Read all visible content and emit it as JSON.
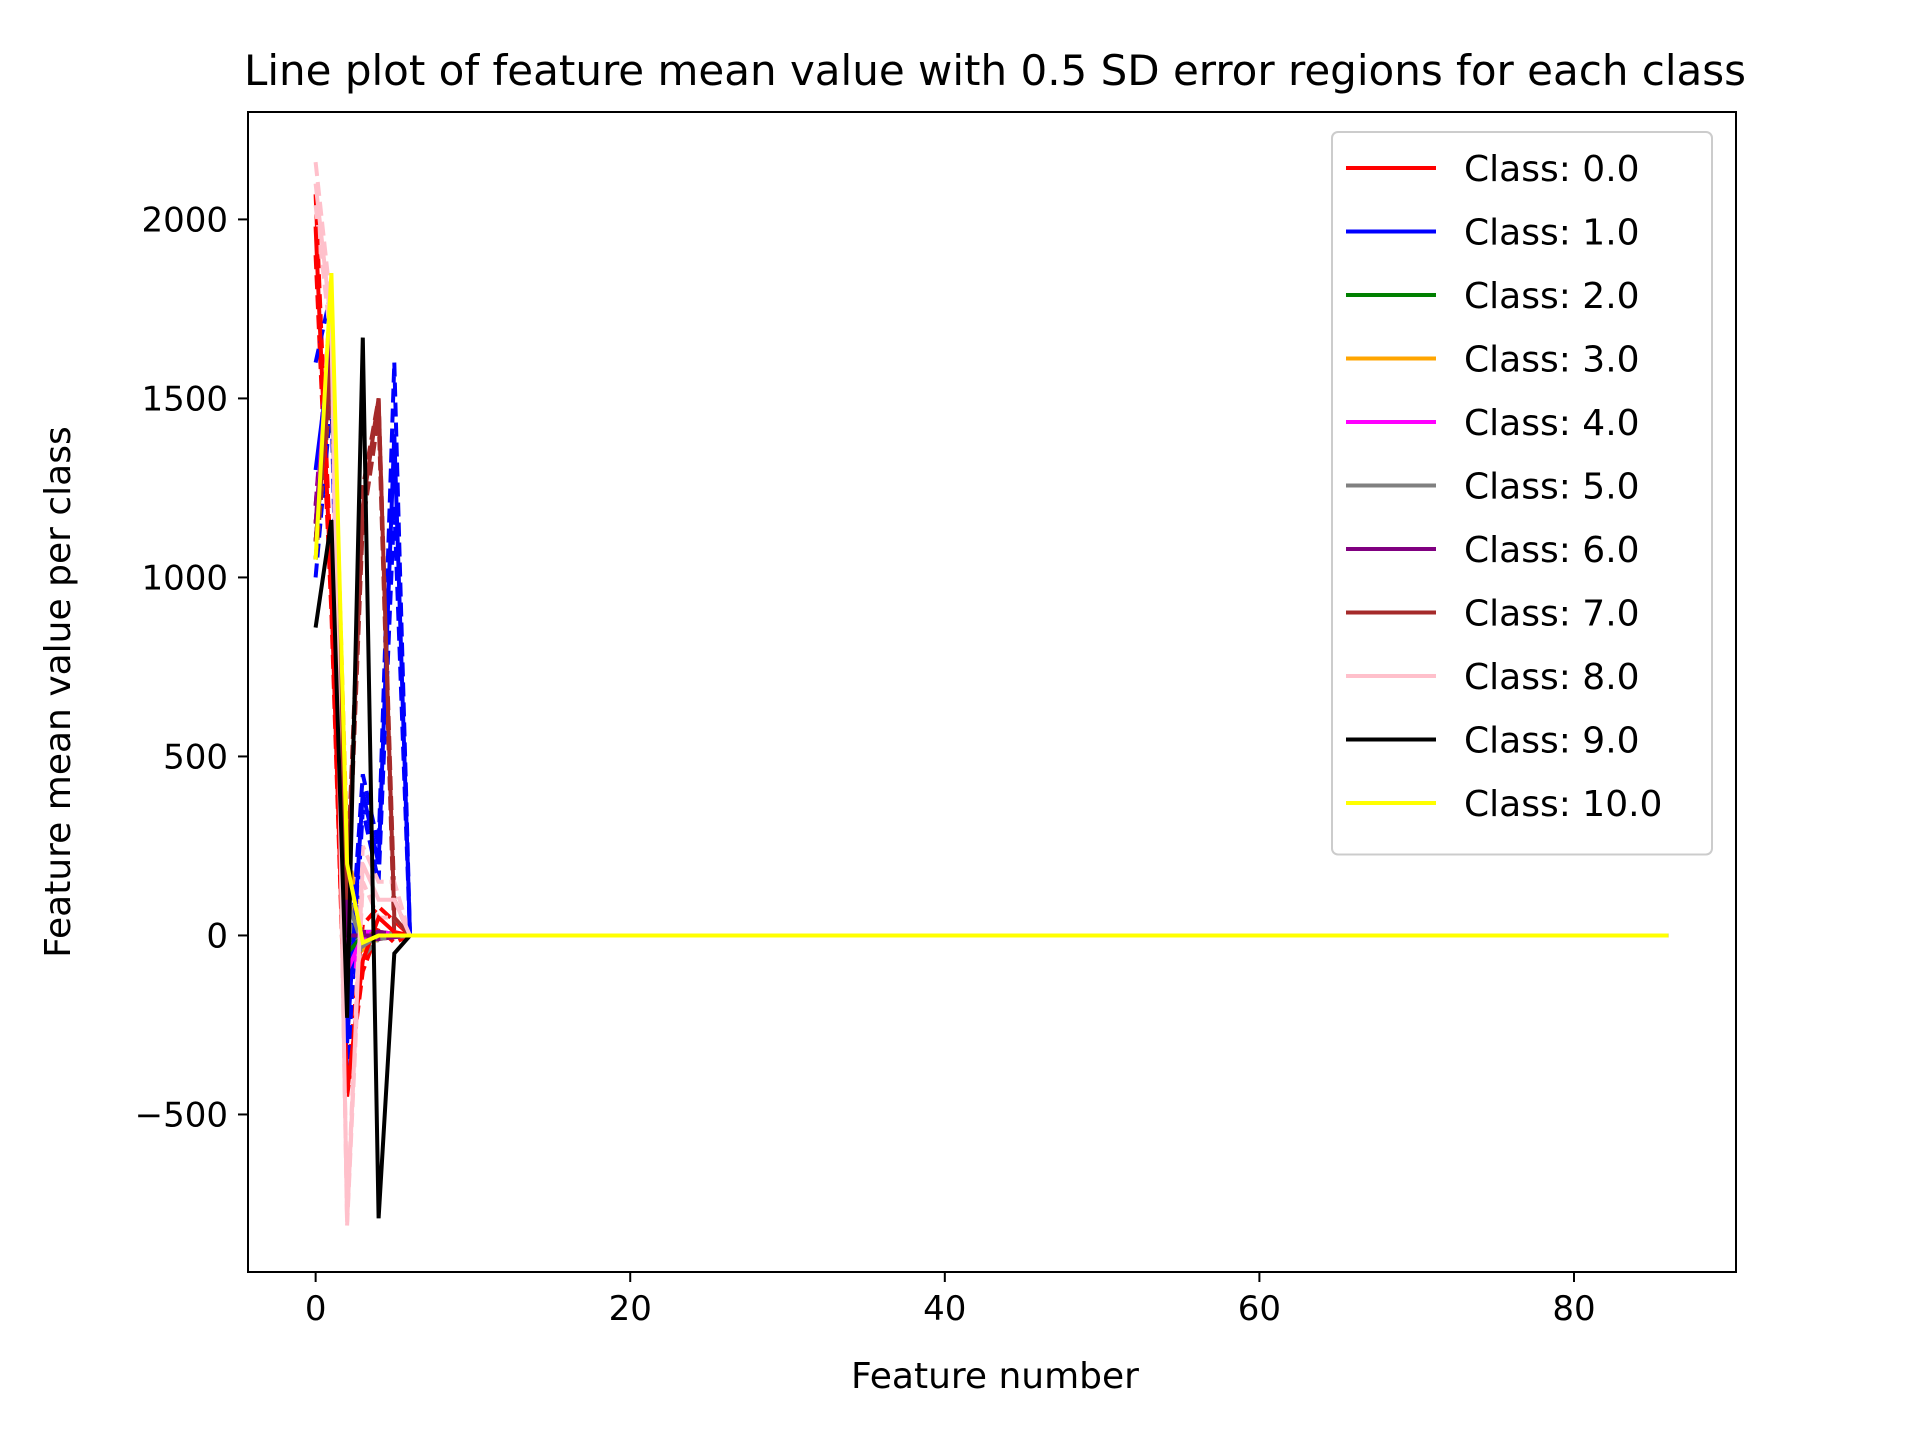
{
  "chart_data": {
    "type": "line",
    "title": "Line plot of feature mean value with 0.5 SD error regions for each class",
    "xlabel": "Feature number",
    "ylabel": "Feature mean value per class",
    "xlim": [
      -4.3,
      90.3
    ],
    "ylim": [
      -940,
      2300
    ],
    "x_ticks": [
      0,
      20,
      40,
      60,
      80
    ],
    "y_ticks": [
      -500,
      0,
      500,
      1000,
      1500,
      2000
    ],
    "x_tick_labels": [
      "0",
      "20",
      "40",
      "60",
      "80"
    ],
    "y_tick_labels": [
      "−500",
      "0",
      "500",
      "1000",
      "1500",
      "2000"
    ],
    "grid": false,
    "legend_position": "top-right",
    "x_max_feature": 86,
    "series": [
      {
        "name": "Class: 0.0",
        "color": "#ff0000",
        "mean": [
          1980,
          950,
          -440,
          -70,
          50,
          10,
          0
        ],
        "upper": [
          2070,
          1000,
          -420,
          30,
          80,
          40,
          0
        ],
        "lower": [
          1900,
          900,
          -450,
          -100,
          20,
          -20,
          0
        ]
      },
      {
        "name": "Class: 1.0",
        "color": "#0000ff",
        "mean": [
          1300,
          1650,
          -300,
          400,
          200,
          1400,
          0
        ],
        "upper": [
          1600,
          1800,
          -200,
          450,
          250,
          1600,
          0
        ],
        "lower": [
          1000,
          1500,
          -400,
          350,
          150,
          1200,
          0
        ]
      },
      {
        "name": "Class: 2.0",
        "color": "#008000",
        "mean": [
          1100,
          1600,
          -50,
          0,
          0,
          0,
          0
        ],
        "upper": [
          1150,
          1650,
          -20,
          10,
          10,
          5,
          0
        ],
        "lower": [
          1050,
          1550,
          -80,
          -10,
          -10,
          -5,
          0
        ]
      },
      {
        "name": "Class: 3.0",
        "color": "#ffa500",
        "mean": [
          1150,
          1700,
          200,
          -20,
          0,
          0,
          0
        ],
        "upper": [
          1200,
          1750,
          250,
          0,
          10,
          5,
          0
        ],
        "lower": [
          1100,
          1650,
          150,
          -40,
          -10,
          -5,
          0
        ]
      },
      {
        "name": "Class: 4.0",
        "color": "#ff00ff",
        "mean": [
          1150,
          1750,
          -100,
          0,
          0,
          0,
          0
        ],
        "upper": [
          1200,
          1800,
          -50,
          10,
          10,
          5,
          0
        ],
        "lower": [
          1100,
          1700,
          -150,
          -10,
          -10,
          -5,
          0
        ]
      },
      {
        "name": "Class: 5.0",
        "color": "#808080",
        "mean": [
          1100,
          1600,
          100,
          -30,
          0,
          0,
          0
        ],
        "upper": [
          1150,
          1650,
          150,
          0,
          10,
          5,
          0
        ],
        "lower": [
          1050,
          1550,
          50,
          -60,
          -10,
          -5,
          0
        ]
      },
      {
        "name": "Class: 6.0",
        "color": "#800080",
        "mean": [
          1150,
          1700,
          0,
          0,
          0,
          0,
          0
        ],
        "upper": [
          1200,
          1750,
          30,
          10,
          10,
          5,
          0
        ],
        "lower": [
          1100,
          1650,
          -30,
          -10,
          -10,
          -5,
          0
        ]
      },
      {
        "name": "Class: 7.0",
        "color": "#a52a2a",
        "mean": [
          1100,
          1600,
          100,
          1200,
          1500,
          50,
          0
        ],
        "upper": [
          1150,
          1650,
          150,
          1250,
          1500,
          100,
          0
        ],
        "lower": [
          1050,
          1550,
          50,
          1150,
          1450,
          0,
          0
        ]
      },
      {
        "name": "Class: 8.0",
        "color": "#ffc0cb",
        "mean": [
          2100,
          1700,
          -800,
          200,
          100,
          100,
          0
        ],
        "upper": [
          2160,
          1750,
          -790,
          250,
          150,
          150,
          0
        ],
        "lower": [
          2040,
          1650,
          -810,
          150,
          50,
          50,
          0
        ]
      },
      {
        "name": "Class: 9.0",
        "color": "#000000",
        "mean": [
          860,
          1160,
          -230,
          1670,
          -790,
          -50,
          0
        ]
      },
      {
        "name": "Class: 10.0",
        "color": "#ffff00",
        "mean": [
          1050,
          1850,
          200,
          -20,
          0,
          0,
          0
        ]
      }
    ]
  }
}
